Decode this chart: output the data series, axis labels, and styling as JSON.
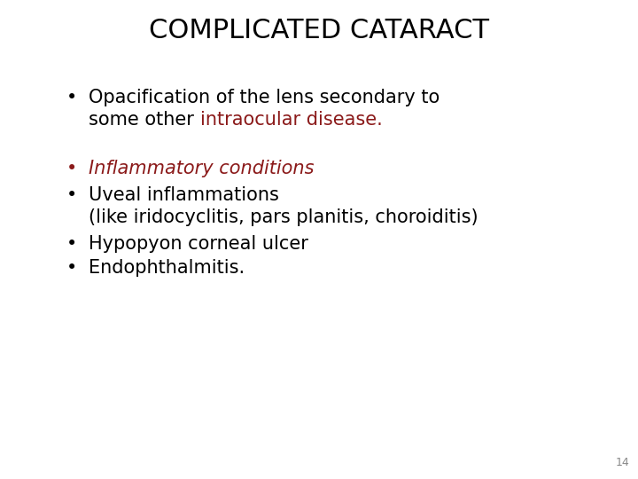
{
  "title": "COMPLICATED CATARACT",
  "title_color": "#000000",
  "title_fontsize": 22,
  "background_color": "#ffffff",
  "bullet1_line1": "Opacification of the lens secondary to",
  "bullet1_line2_plain": "some other ",
  "bullet1_line2_colored": "intraocular disease.",
  "bullet1_color": "#000000",
  "bullet1_colored_color": "#8b1a1a",
  "bullet2_text": "Inflammatory conditions",
  "bullet2_color": "#8b1a1a",
  "bullet3_text": "Uveal inflammations",
  "bullet3_color": "#000000",
  "bullet3b_text": "(like iridocyclitis, pars planitis, choroiditis)",
  "bullet3b_color": "#000000",
  "bullet4_text": "Hypopyon corneal ulcer",
  "bullet4_color": "#000000",
  "bullet5_text": "Endophthalmitis.",
  "bullet5_color": "#000000",
  "page_number": "14",
  "page_number_color": "#888888",
  "body_fontsize": 15,
  "italic_fontsize": 15,
  "bullet_fontsize": 15
}
